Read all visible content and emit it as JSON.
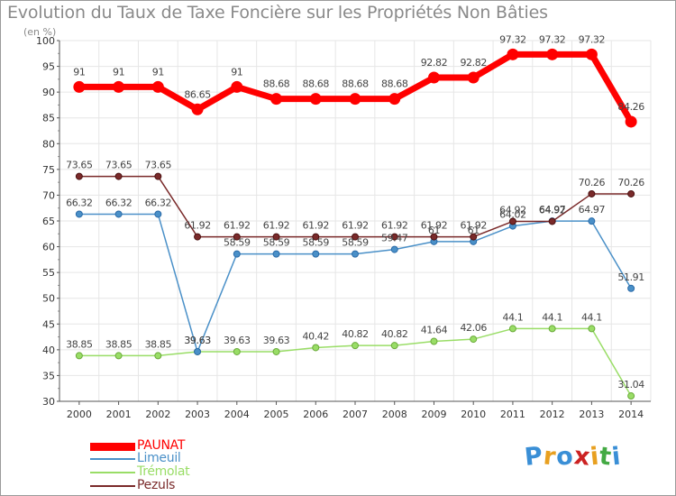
{
  "title": "Evolution du Taux de Taxe Foncière sur les Propriétés Non Bâties",
  "unit_label": "(en %)",
  "chart_data": {
    "type": "line",
    "title": "Evolution du Taux de Taxe Foncière sur les Propriétés Non Bâties",
    "ylabel": "(en %)",
    "xlabel": "",
    "ylim": [
      30,
      100
    ],
    "y_ticks": [
      "30",
      "35",
      "40",
      "45",
      "50",
      "55",
      "60",
      "65",
      "70",
      "75",
      "80",
      "85",
      "90",
      "95",
      "100"
    ],
    "categories": [
      "2000",
      "2001",
      "2002",
      "2003",
      "2004",
      "2005",
      "2006",
      "2007",
      "2008",
      "2009",
      "2010",
      "2011",
      "2012",
      "2013",
      "2014"
    ],
    "grid": true,
    "legend_position": "bottom-left",
    "series": [
      {
        "name": "PAUNAT",
        "color": "#ff0000",
        "values": [
          91,
          91,
          91,
          86.65,
          91,
          88.68,
          88.68,
          88.68,
          88.68,
          92.82,
          92.82,
          97.32,
          97.32,
          97.32,
          84.26
        ],
        "labels": [
          "91",
          "91",
          "91",
          "86.65",
          "91",
          "88.68",
          "88.68",
          "88.68",
          "88.68",
          "92.82",
          "92.82",
          "97.32",
          "97.32",
          "97.32",
          "84.26"
        ]
      },
      {
        "name": "Limeuil",
        "color": "#4a90c8",
        "values": [
          66.32,
          66.32,
          66.32,
          39.63,
          58.59,
          58.59,
          58.59,
          58.59,
          59.47,
          61,
          61,
          64.02,
          64.97,
          64.97,
          51.91
        ],
        "labels": [
          "66.32",
          "66.32",
          "66.32",
          "39.63",
          "58.59",
          "58.59",
          "58.59",
          "58.59",
          "59.47",
          "61",
          "61",
          "64.02",
          "64.97",
          "64.97",
          "51.91"
        ]
      },
      {
        "name": "Trémolat",
        "color": "#99dd66",
        "values": [
          38.85,
          38.85,
          38.85,
          39.63,
          39.63,
          39.63,
          40.42,
          40.82,
          40.82,
          41.64,
          42.06,
          44.1,
          44.1,
          44.1,
          31.04
        ],
        "labels": [
          "38.85",
          "38.85",
          "38.85",
          "39.63",
          "39.63",
          "39.63",
          "40.42",
          "40.82",
          "40.82",
          "41.64",
          "42.06",
          "44.1",
          "44.1",
          "44.1",
          "31.04"
        ]
      },
      {
        "name": "Pezuls",
        "color": "#7a2a2a",
        "values": [
          73.65,
          73.65,
          73.65,
          61.92,
          61.92,
          61.92,
          61.92,
          61.92,
          61.92,
          61.92,
          61.92,
          64.92,
          64.92,
          70.26,
          70.26
        ],
        "labels": [
          "73.65",
          "73.65",
          "73.65",
          "61.92",
          "61.92",
          "61.92",
          "61.92",
          "61.92",
          "61.92",
          "61.92",
          "61.92",
          "64.92",
          "64.92",
          "70.26",
          "70.26"
        ]
      }
    ]
  },
  "logo": {
    "letters": [
      "P",
      "r",
      "o",
      "x",
      "i",
      "t",
      "i"
    ],
    "colors": [
      "#3a8fd6",
      "#e8a020",
      "#3a8fd6",
      "#cc2222",
      "#e8a020",
      "#44aa44",
      "#3a8fd6"
    ]
  }
}
